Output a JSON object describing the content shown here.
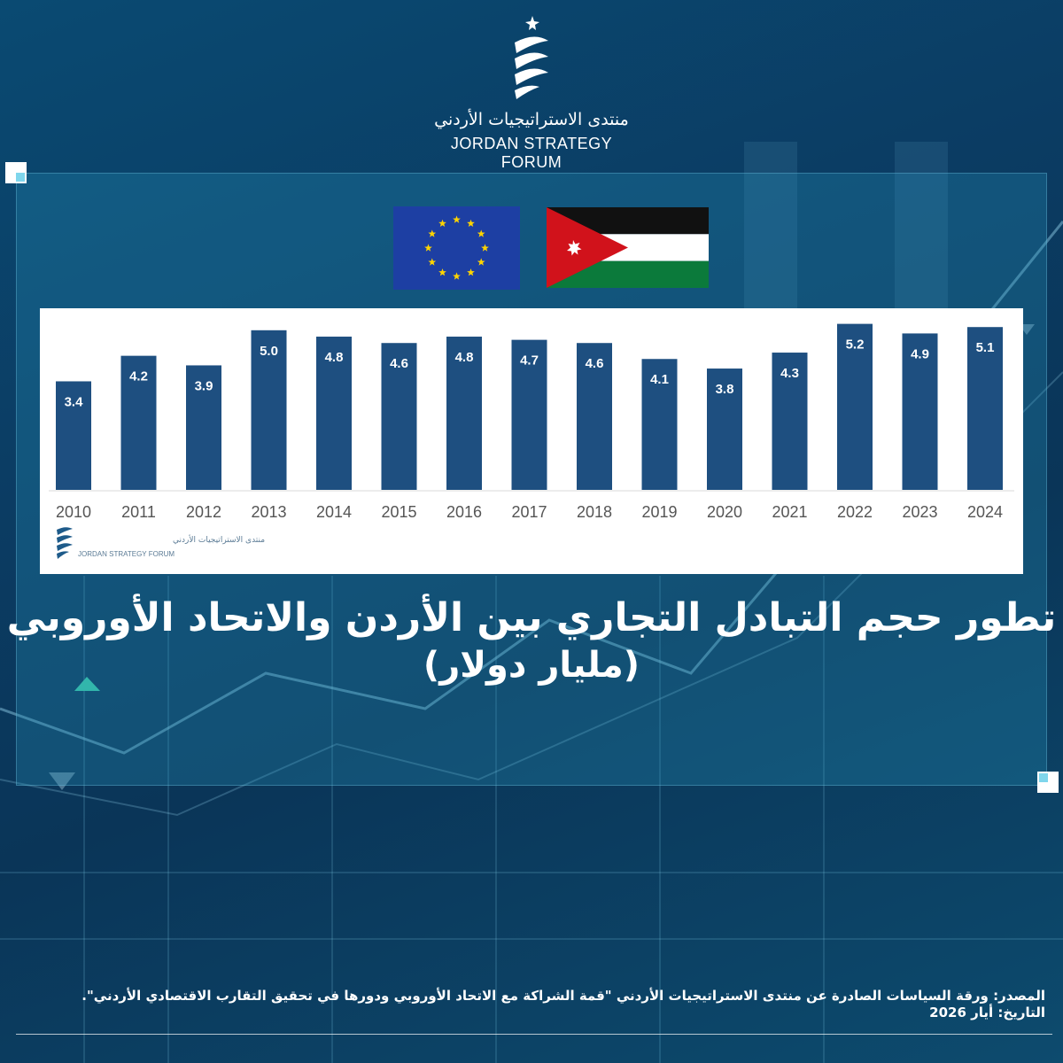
{
  "logo": {
    "name_ar": "منتدى الاستراتيجيات الأردني",
    "name_en": "JORDAN STRATEGY FORUM",
    "small_name_ar": "منتدى الاستراتيجيات الأردني",
    "small_name_en": "JORDAN STRATEGY FORUM"
  },
  "flags": [
    "eu-flag",
    "jordan-flag"
  ],
  "colors": {
    "bar": "#1e4f80",
    "background": "#0b3c63",
    "panel": "#2a8fbd"
  },
  "title": {
    "line1": "تطور حجم التبادل التجاري بين الأردن والاتحاد الأوروبي",
    "line2": "(مليار دولار)"
  },
  "chart_data": {
    "type": "bar",
    "categories": [
      "2010",
      "2011",
      "2012",
      "2013",
      "2014",
      "2015",
      "2016",
      "2017",
      "2018",
      "2019",
      "2020",
      "2021",
      "2022",
      "2023",
      "2024"
    ],
    "values": [
      3.4,
      4.2,
      3.9,
      5.0,
      4.8,
      4.6,
      4.8,
      4.7,
      4.6,
      4.1,
      3.8,
      4.3,
      5.2,
      4.9,
      5.1
    ],
    "value_labels": [
      "3.4",
      "4.2",
      "3.9",
      "5.0",
      "4.8",
      "4.6",
      "4.8",
      "4.7",
      "4.6",
      "4.1",
      "3.8",
      "4.3",
      "5.2",
      "4.9",
      "5.1"
    ],
    "title": "",
    "xlabel": "",
    "ylabel": "",
    "ylim": [
      0,
      5.3
    ],
    "grid": false
  },
  "source": {
    "line1": "المصدر: ورقة السياسات الصادرة عن منتدى الاستراتيجيات الأردني \"قمة الشراكة مع الاتحاد الأوروبي ودورها في تحقيق التقارب الاقتصادي الأردني\".",
    "line2": "التاريخ: أيار 2026"
  }
}
